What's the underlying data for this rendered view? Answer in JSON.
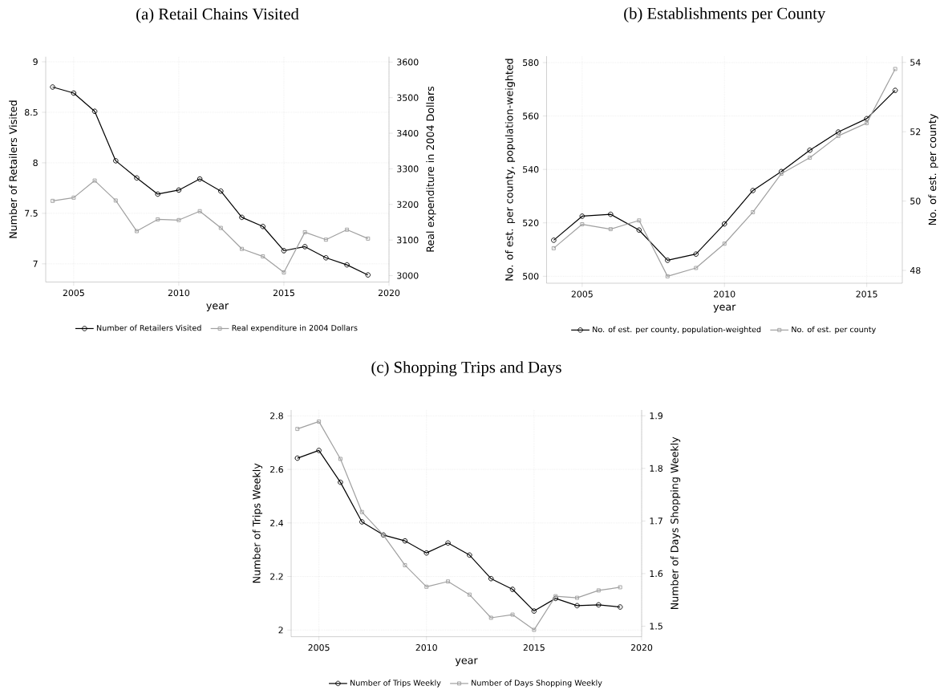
{
  "chart_data": [
    {
      "type": "line",
      "title": "(a) Retail Chains Visited",
      "xlabel": "year",
      "ylabel": "Number of Retailers Visited",
      "y2label": "Real expenditure in 2004 Dollars",
      "x": [
        2004,
        2005,
        2006,
        2007,
        2008,
        2009,
        2010,
        2011,
        2012,
        2013,
        2014,
        2015,
        2016,
        2017,
        2018,
        2019
      ],
      "series": [
        {
          "name": "Number of Retailers Visited",
          "color": "#000000",
          "marker": "circle",
          "values": [
            8.75,
            8.69,
            8.51,
            8.02,
            7.85,
            7.69,
            7.73,
            7.84,
            7.72,
            7.46,
            7.37,
            7.13,
            7.17,
            7.06,
            6.99,
            6.89
          ]
        },
        {
          "name": "Real expenditure in 2004 Dollars",
          "color": "#a0a0a0",
          "marker": "square",
          "axis": "y2",
          "values": [
            3210,
            3219,
            3267,
            3211,
            3125,
            3158,
            3156,
            3181,
            3134,
            3075,
            3054,
            3009,
            3122,
            3101,
            3129,
            3104
          ]
        }
      ],
      "xlim": [
        2003.67,
        2020
      ],
      "xticks": [
        2005,
        2010,
        2015,
        2020
      ],
      "ylim": [
        6.82,
        9.05
      ],
      "yticks": [
        7,
        7.5,
        8,
        8.5,
        9
      ],
      "y2lim": [
        2982,
        3615
      ],
      "y2ticks": [
        3000,
        3100,
        3200,
        3300,
        3400,
        3500,
        3600
      ],
      "grid": true,
      "legend": "bottom"
    },
    {
      "type": "line",
      "title": "(b) Establishments per County",
      "xlabel": "year",
      "ylabel": "No. of est. per county, population-weighted",
      "y2label": "No. of est. per county",
      "x": [
        2004,
        2005,
        2006,
        2007,
        2008,
        2009,
        2010,
        2011,
        2012,
        2013,
        2014,
        2015,
        2016
      ],
      "series": [
        {
          "name": "No. of est. per county, population-weighted",
          "color": "#000000",
          "marker": "circle",
          "values": [
            513.5,
            522.5,
            523.2,
            517.3,
            506.0,
            508.3,
            519.6,
            532.1,
            539.2,
            547.2,
            554.0,
            559.0,
            569.6
          ]
        },
        {
          "name": "No. of est. per county",
          "color": "#a0a0a0",
          "marker": "square",
          "axis": "y2",
          "values": [
            48.64,
            49.33,
            49.19,
            49.44,
            47.83,
            48.07,
            48.77,
            49.68,
            50.79,
            51.25,
            51.88,
            52.25,
            53.81
          ]
        }
      ],
      "xlim": [
        2003.75,
        2016.25
      ],
      "xticks": [
        2005,
        2010,
        2015
      ],
      "ylim": [
        497.4,
        582.4
      ],
      "yticks": [
        500,
        520,
        540,
        560,
        580
      ],
      "y2lim": [
        47.63,
        54.18
      ],
      "y2ticks": [
        48,
        50,
        52,
        54
      ],
      "grid": true,
      "legend": "bottom"
    },
    {
      "type": "line",
      "title": "(c) Shopping Trips and Days",
      "xlabel": "year",
      "ylabel": "Number of Trips Weekly",
      "y2label": "Number of Days Shopping Weekly",
      "x": [
        2004,
        2005,
        2006,
        2007,
        2008,
        2009,
        2010,
        2011,
        2012,
        2013,
        2014,
        2015,
        2016,
        2017,
        2018,
        2019
      ],
      "series": [
        {
          "name": "Number of Trips Weekly",
          "color": "#000000",
          "marker": "circle",
          "values": [
            2.642,
            2.671,
            2.552,
            2.404,
            2.355,
            2.333,
            2.288,
            2.325,
            2.28,
            2.192,
            2.152,
            2.071,
            2.118,
            2.091,
            2.094,
            2.086
          ]
        },
        {
          "name": "Number of Days Shopping Weekly",
          "color": "#a0a0a0",
          "marker": "square",
          "axis": "y2",
          "values": [
            1.875,
            1.889,
            1.818,
            1.717,
            1.673,
            1.616,
            1.575,
            1.585,
            1.56,
            1.516,
            1.522,
            1.493,
            1.557,
            1.554,
            1.568,
            1.574
          ]
        }
      ],
      "xlim": [
        2003.71,
        2020
      ],
      "xticks": [
        2005,
        2010,
        2015,
        2020
      ],
      "ylim": [
        1.975,
        2.822
      ],
      "yticks": [
        2,
        2.2,
        2.4,
        2.6,
        2.8
      ],
      "y2lim": [
        1.48,
        1.911
      ],
      "y2ticks": [
        1.5,
        1.6,
        1.7,
        1.8,
        1.9
      ],
      "grid": true,
      "legend": "bottom"
    }
  ]
}
